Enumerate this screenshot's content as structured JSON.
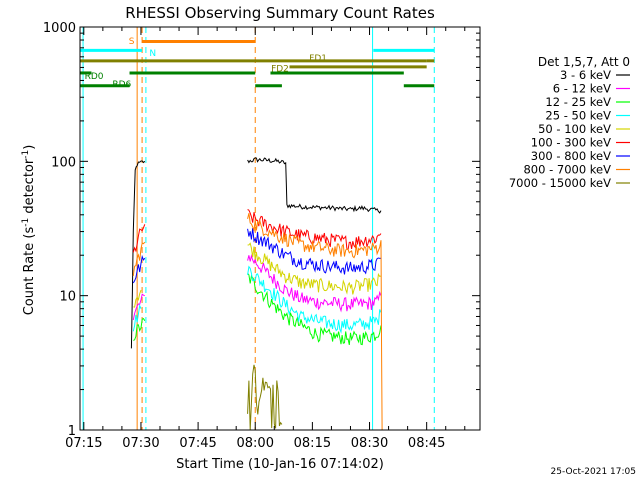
{
  "chart_data": {
    "type": "line",
    "title": "RHESSI Observing Summary Count Rates",
    "xlabel": "Start Time (10-Jan-16 07:14:02)",
    "ylabel_main": "Count Rate (s",
    "ylabel_sup": "-1",
    "ylabel_rest": " detector",
    "ylabel_sup2": "-1",
    "ylabel_end": ")",
    "yscale": "log",
    "ylim": [
      1,
      1000
    ],
    "xlim_min": [
      434,
      539
    ],
    "x_ticks": [
      {
        "t": 435,
        "label": "07:15"
      },
      {
        "t": 450,
        "label": "07:30"
      },
      {
        "t": 465,
        "label": "07:45"
      },
      {
        "t": 480,
        "label": "08:00"
      },
      {
        "t": 495,
        "label": "08:15"
      },
      {
        "t": 510,
        "label": "08:30"
      },
      {
        "t": 525,
        "label": "08:45"
      }
    ],
    "y_ticks": [
      {
        "v": 1,
        "label": "1"
      },
      {
        "v": 10,
        "label": "10"
      },
      {
        "v": 100,
        "label": "100"
      },
      {
        "v": 1000,
        "label": "1000"
      }
    ],
    "legend_title": "Det 1,5,7, Att 0",
    "legend_placement": "right",
    "series": [
      {
        "name": "3 - 6 keV",
        "color": "#000000",
        "segments": [
          [
            [
              447.5,
              4
            ],
            [
              448,
              30
            ],
            [
              448.5,
              85
            ],
            [
              449,
              95
            ],
            [
              450,
              98
            ],
            [
              451,
              100
            ]
          ],
          [
            [
              478,
              100
            ],
            [
              480,
              103
            ],
            [
              483,
              102
            ],
            [
              486,
              100
            ],
            [
              488,
              97
            ],
            [
              488.3,
              47
            ],
            [
              492,
              46
            ],
            [
              500,
              45
            ],
            [
              505,
              44
            ],
            [
              508,
              45
            ],
            [
              510,
              44
            ],
            [
              512,
              43
            ],
            [
              513,
              43
            ]
          ]
        ]
      },
      {
        "name": "6 - 12 keV",
        "color": "#ff00ff",
        "segments": [
          [
            [
              448,
              7
            ],
            [
              449,
              8
            ],
            [
              450,
              9
            ],
            [
              451,
              10
            ]
          ],
          [
            [
              478,
              20
            ],
            [
              480,
              18
            ],
            [
              484,
              14
            ],
            [
              488,
              11
            ],
            [
              492,
              9.5
            ],
            [
              496,
              9
            ],
            [
              500,
              8.8
            ],
            [
              505,
              8.6
            ],
            [
              509,
              8.7
            ],
            [
              512,
              9
            ],
            [
              513,
              10
            ]
          ]
        ]
      },
      {
        "name": "12 - 25 keV",
        "color": "#00ff00",
        "segments": [
          [
            [
              448,
              5
            ],
            [
              449,
              5.5
            ],
            [
              450,
              6
            ],
            [
              451,
              6.5
            ]
          ],
          [
            [
              478,
              14
            ],
            [
              480,
              12
            ],
            [
              484,
              9
            ],
            [
              488,
              7
            ],
            [
              492,
              6
            ],
            [
              496,
              5.2
            ],
            [
              500,
              5
            ],
            [
              505,
              4.8
            ],
            [
              509,
              4.9
            ],
            [
              512,
              5.2
            ],
            [
              513,
              6
            ]
          ]
        ]
      },
      {
        "name": "25 - 50 keV",
        "color": "#00ffff",
        "segments": [
          [
            [
              448,
              6
            ],
            [
              449,
              7
            ],
            [
              450,
              8
            ]
          ],
          [
            [
              478,
              16
            ],
            [
              480,
              14
            ],
            [
              484,
              11
            ],
            [
              488,
              8.5
            ],
            [
              492,
              7
            ],
            [
              496,
              6.5
            ],
            [
              500,
              6.2
            ],
            [
              505,
              6
            ],
            [
              509,
              6.2
            ],
            [
              512,
              6.5
            ],
            [
              513,
              7.5
            ]
          ]
        ]
      },
      {
        "name": "50 - 100 keV",
        "color": "#d4d400",
        "segments": [
          [
            [
              448,
              9
            ],
            [
              449,
              10
            ],
            [
              450,
              11
            ]
          ],
          [
            [
              478,
              24
            ],
            [
              480,
              21
            ],
            [
              484,
              17
            ],
            [
              488,
              14
            ],
            [
              492,
              12.5
            ],
            [
              496,
              12
            ],
            [
              500,
              11.8
            ],
            [
              505,
              11.5
            ],
            [
              509,
              12
            ],
            [
              512,
              12.5
            ],
            [
              513,
              14
            ]
          ]
        ]
      },
      {
        "name": "100 - 300 keV",
        "color": "#ff0000",
        "segments": [
          [
            [
              448,
              20
            ],
            [
              449,
              25
            ],
            [
              450,
              30
            ],
            [
              451,
              34
            ]
          ],
          [
            [
              478,
              40
            ],
            [
              480,
              37
            ],
            [
              484,
              33
            ],
            [
              488,
              30
            ],
            [
              492,
              28
            ],
            [
              496,
              27
            ],
            [
              500,
              26
            ],
            [
              505,
              25
            ],
            [
              509,
              26
            ],
            [
              512,
              27
            ],
            [
              513,
              29
            ]
          ]
        ]
      },
      {
        "name": "300 - 800 keV",
        "color": "#0000ff",
        "segments": [
          [
            [
              448,
              13
            ],
            [
              449,
              15
            ],
            [
              450,
              17
            ],
            [
              451,
              19
            ]
          ],
          [
            [
              478,
              31
            ],
            [
              480,
              28
            ],
            [
              484,
              24
            ],
            [
              488,
              20
            ],
            [
              492,
              18
            ],
            [
              496,
              17
            ],
            [
              500,
              16.5
            ],
            [
              505,
              16
            ],
            [
              509,
              16.5
            ],
            [
              512,
              17
            ],
            [
              513,
              19
            ]
          ]
        ]
      },
      {
        "name": "800 - 7000 keV",
        "color": "#ff8000",
        "segments": [
          [
            [
              448,
              15
            ],
            [
              449,
              18
            ],
            [
              450,
              22
            ],
            [
              451,
              25
            ]
          ],
          [
            [
              478,
              38
            ],
            [
              480,
              34
            ],
            [
              484,
              30
            ],
            [
              486,
              28
            ],
            [
              489,
              26
            ],
            [
              492,
              24
            ],
            [
              496,
              23
            ],
            [
              500,
              22
            ],
            [
              505,
              21.5
            ],
            [
              509,
              22
            ],
            [
              512,
              23
            ],
            [
              513,
              24
            ],
            [
              513.3,
              1
            ]
          ]
        ]
      },
      {
        "name": "7000 - 15000 keV",
        "color": "#808000",
        "segments": [
          [
            [
              478,
              2.5
            ],
            [
              479,
              1.5
            ],
            [
              480,
              2.8
            ],
            [
              481,
              1.2
            ],
            [
              482,
              2.4
            ],
            [
              483,
              1.8
            ],
            [
              484,
              2.1
            ],
            [
              485,
              1.3
            ],
            [
              486,
              1.8
            ],
            [
              487,
              1.1
            ]
          ]
        ]
      }
    ],
    "annotations": {
      "S": {
        "label": "S",
        "color": "#ff8000"
      },
      "N": {
        "label": "N",
        "color": "#00ffff"
      },
      "FD1": {
        "label": "FD1",
        "color": "#808000"
      },
      "FD2": {
        "label": "FD2",
        "color": "#808000"
      },
      "RD0": {
        "label": "RD0",
        "color": "#008000"
      },
      "RD6": {
        "label": "RD6",
        "color": "#008000"
      }
    },
    "bars": [
      {
        "color": "#ff8000",
        "ymult": 780,
        "from": 450.3,
        "to": 480
      },
      {
        "color": "#00ffff",
        "ymult": 670,
        "from": 434,
        "to": 450.3
      },
      {
        "color": "#00ffff",
        "ymult": 670,
        "from": 511,
        "to": 527
      },
      {
        "color": "#808000",
        "ymult": 560,
        "from": 434,
        "to": 525
      },
      {
        "color": "#808000",
        "ymult": 505,
        "from": 489,
        "to": 525
      },
      {
        "color": "#808000",
        "ymult": 560,
        "from": 525,
        "to": 527
      },
      {
        "color": "#008000",
        "ymult": 455,
        "from": 434,
        "to": 437
      },
      {
        "color": "#008000",
        "ymult": 455,
        "from": 447,
        "to": 480
      },
      {
        "color": "#008000",
        "ymult": 455,
        "from": 484,
        "to": 519
      },
      {
        "color": "#008000",
        "ymult": 365,
        "from": 434,
        "to": 447
      },
      {
        "color": "#008000",
        "ymult": 365,
        "from": 480,
        "to": 487
      },
      {
        "color": "#008000",
        "ymult": 365,
        "from": 519,
        "to": 527
      }
    ],
    "vlines": [
      {
        "t": 434.8,
        "color": "#00ffff",
        "dash": false
      },
      {
        "t": 449.0,
        "color": "#ff8000",
        "dash": false
      },
      {
        "t": 450.3,
        "color": "#ff8000",
        "dash": true
      },
      {
        "t": 451.3,
        "color": "#00ffff",
        "dash": true
      },
      {
        "t": 480.0,
        "color": "#ff8000",
        "dash": true
      },
      {
        "t": 510.8,
        "color": "#00ffff",
        "dash": false
      },
      {
        "t": 527.0,
        "color": "#00ffff",
        "dash": true
      }
    ],
    "timestamp": "25-Oct-2021 17:05"
  }
}
